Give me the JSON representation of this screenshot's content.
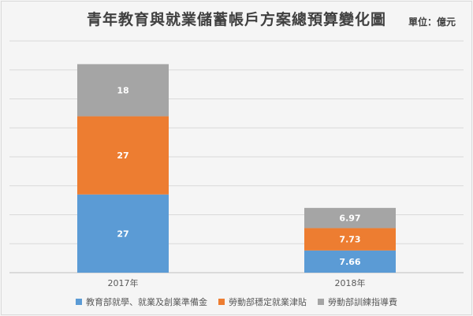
{
  "chart_data": {
    "type": "bar",
    "stacked": true,
    "title": "青年教育與就業儲蓄帳戶方案總預算變化圖",
    "unit_label": "單位：億元",
    "categories": [
      "2017年",
      "2018年"
    ],
    "series": [
      {
        "name": "教育部就學、就業及創業準備金",
        "color": "#5b9bd5",
        "values": [
          27,
          7.66
        ]
      },
      {
        "name": "勞動部穩定就業津貼",
        "color": "#ed7d31",
        "values": [
          27,
          7.73
        ]
      },
      {
        "name": "勞動部訓練指導費",
        "color": "#a5a5a5",
        "values": [
          18,
          6.97
        ]
      }
    ],
    "ylim": [
      0,
      80
    ],
    "grid": true,
    "legend_position": "bottom"
  }
}
